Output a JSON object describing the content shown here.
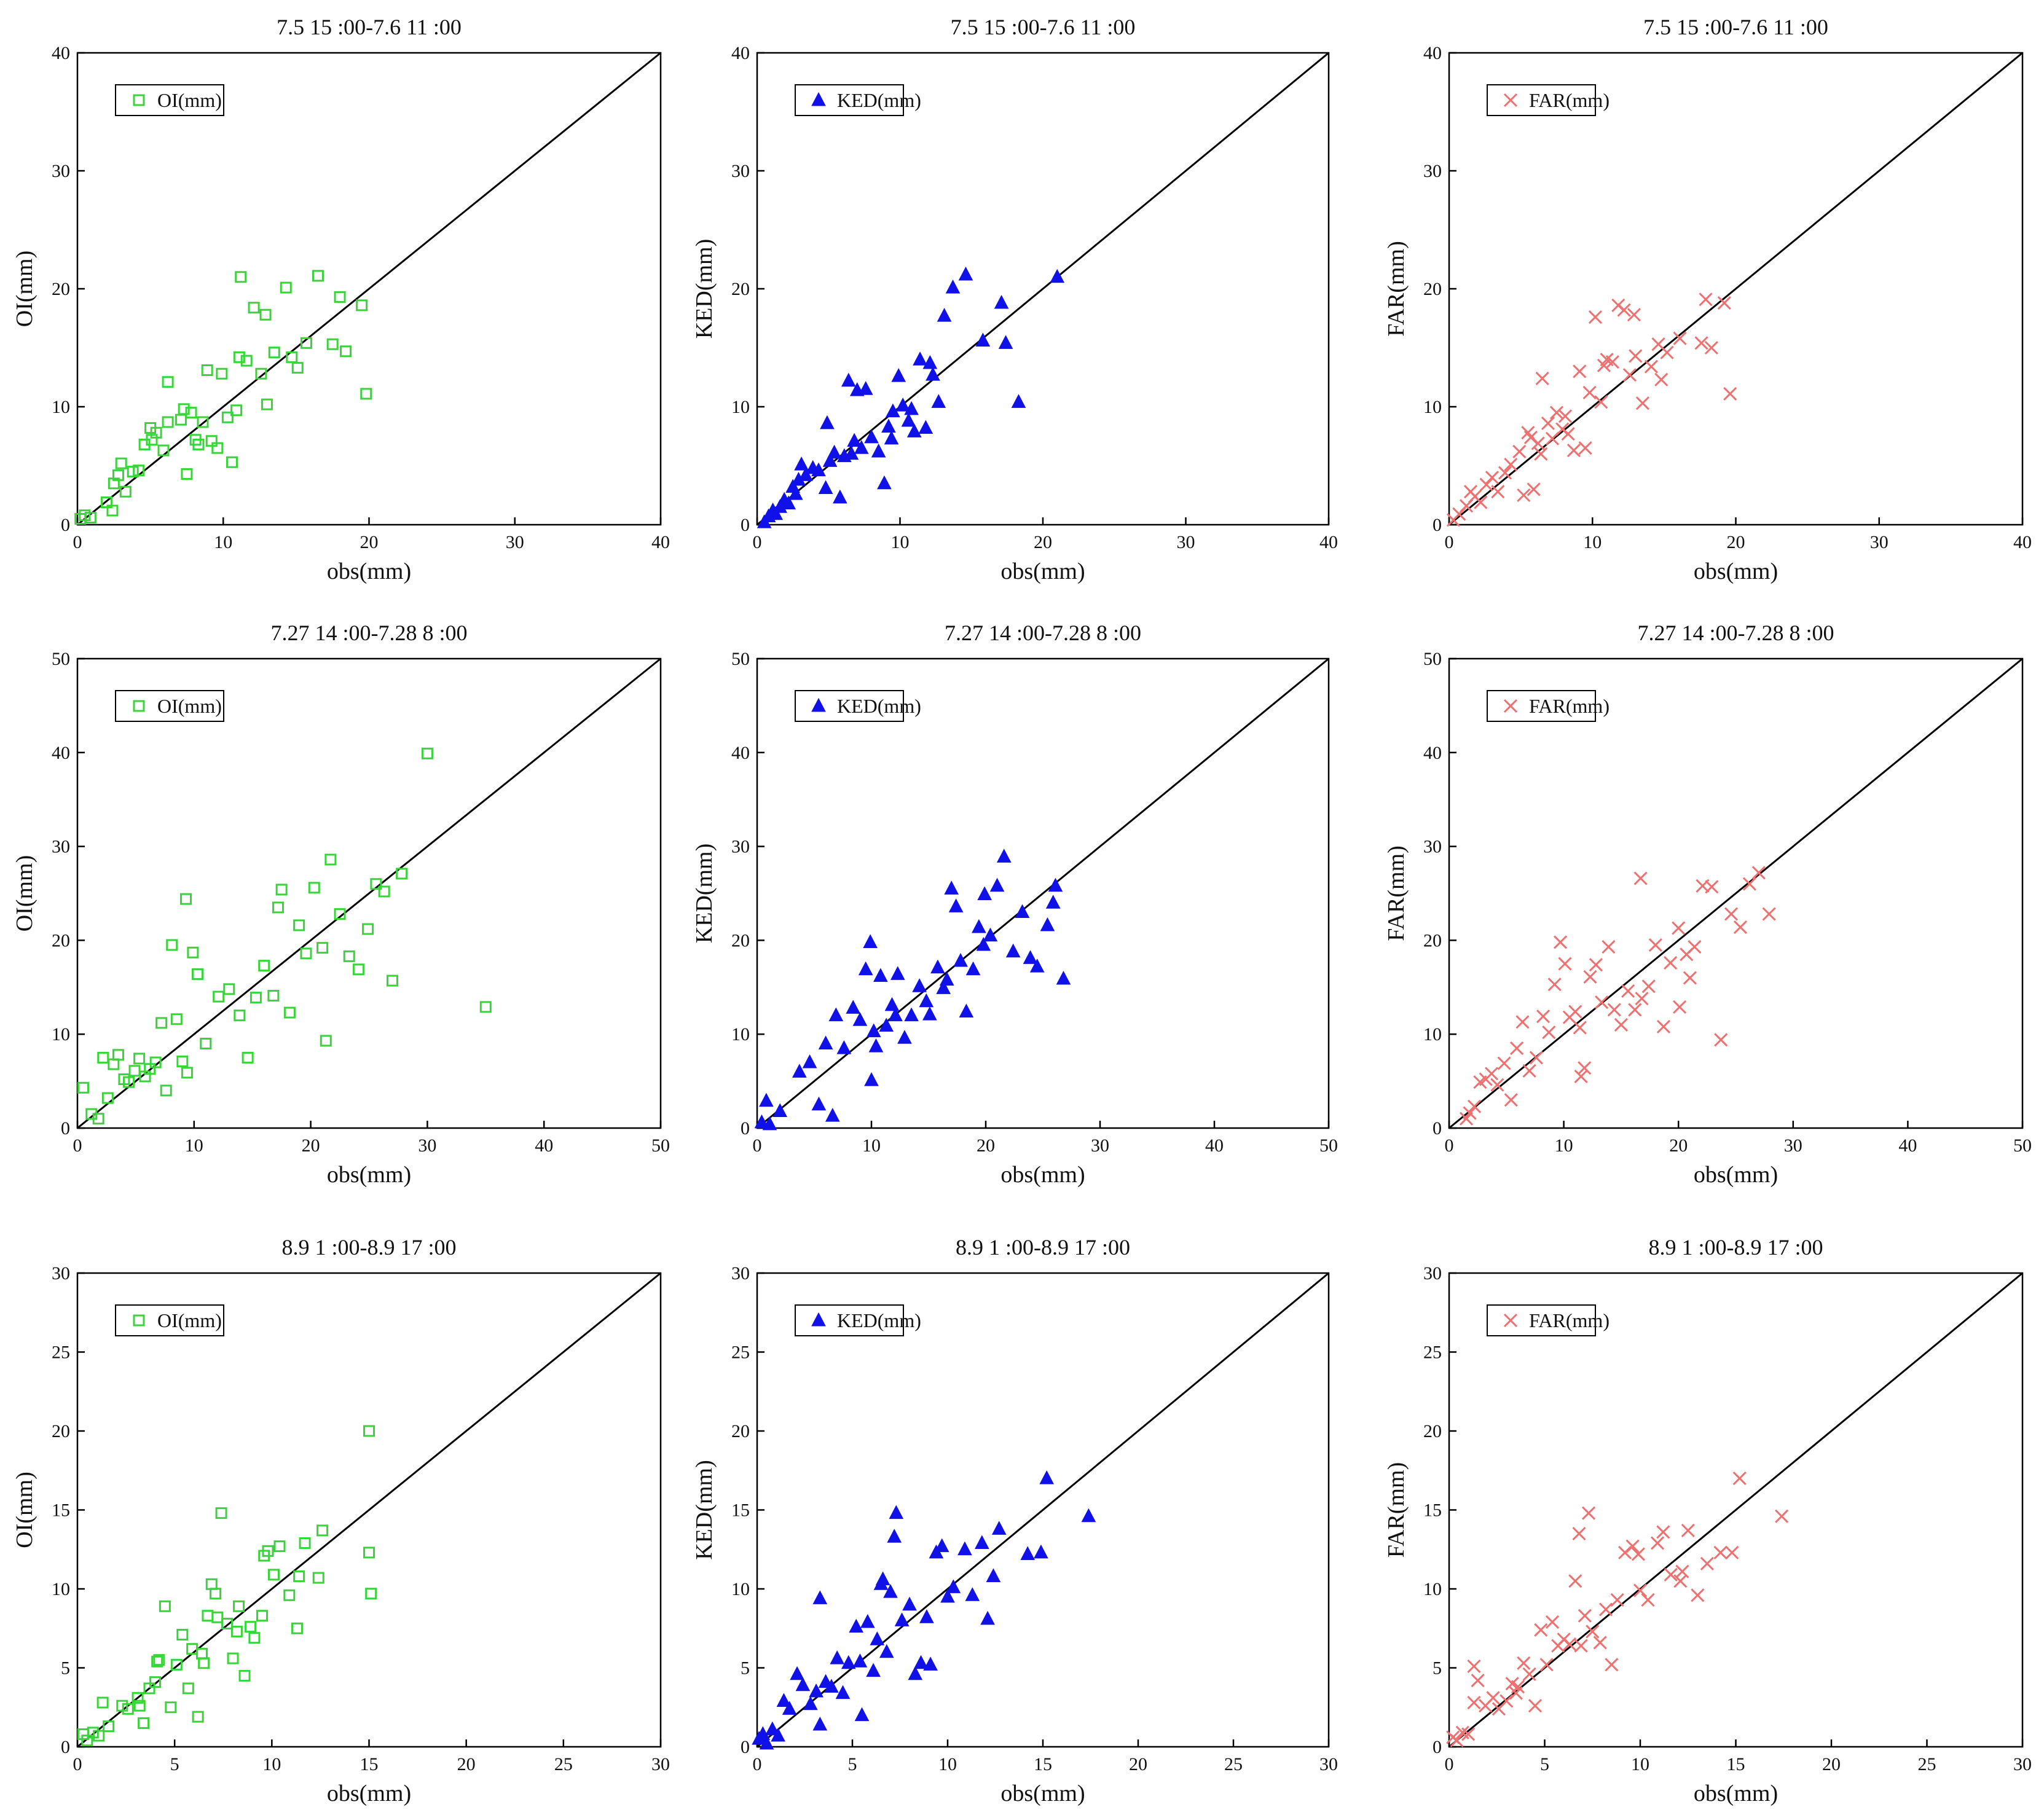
{
  "figure": {
    "rows": 3,
    "cols": 3
  },
  "chart_data": [
    {
      "type": "scatter",
      "title": "7.5 15 :00-7.6 11 :00",
      "xlabel": "obs(mm)",
      "ylabel": "OI(mm)",
      "xlim": [
        0,
        40
      ],
      "ylim": [
        0,
        40
      ],
      "ticks": [
        0,
        10,
        20,
        30,
        40
      ],
      "legend": "OI(mm)",
      "legend_position": "top-left",
      "marker": "square",
      "color": "#39d43a",
      "diagonal": "y = x",
      "x": [
        0.2,
        0.5,
        0.9,
        2.0,
        2.4,
        2.5,
        2.8,
        3.0,
        3.3,
        3.8,
        4.2,
        4.6,
        5.0,
        5.1,
        5.4,
        5.9,
        6.2,
        6.2,
        7.1,
        7.5,
        7.8,
        8.3,
        8.6,
        8.9,
        9.2,
        9.6,
        9.9,
        10.3,
        10.6,
        10.9,
        11.1,
        11.6,
        12.1,
        12.6,
        13.0,
        13.5,
        14.3,
        14.7,
        15.1,
        15.7,
        16.5,
        17.5,
        18.0,
        18.4,
        19.5,
        19.8,
        7.3,
        8.1,
        11.2,
        12.9
      ],
      "y": [
        0.5,
        0.8,
        0.6,
        1.9,
        1.2,
        3.5,
        4.2,
        5.2,
        2.8,
        4.5,
        4.6,
        6.8,
        8.2,
        7.2,
        7.8,
        6.3,
        8.7,
        12.1,
        8.9,
        4.3,
        9.5,
        6.8,
        8.7,
        13.1,
        7.1,
        6.5,
        12.8,
        9.1,
        5.3,
        9.7,
        14.2,
        13.9,
        18.4,
        12.8,
        10.2,
        14.6,
        20.1,
        14.2,
        13.3,
        15.4,
        21.1,
        15.3,
        19.3,
        14.7,
        18.6,
        11.1,
        9.8,
        7.2,
        21.0,
        17.8
      ]
    },
    {
      "type": "scatter",
      "title": "7.5 15 :00-7.6 11 :00",
      "xlabel": "obs(mm)",
      "ylabel": "KED(mm)",
      "xlim": [
        0,
        40
      ],
      "ylim": [
        0,
        40
      ],
      "ticks": [
        0,
        10,
        20,
        30,
        40
      ],
      "legend": "KED(mm)",
      "legend_position": "top-left",
      "marker": "triangle",
      "color": "#1010e8",
      "diagonal": "y = x",
      "x": [
        0.5,
        0.8,
        1.1,
        1.3,
        1.6,
        1.9,
        2.2,
        2.5,
        2.9,
        3.1,
        3.4,
        3.9,
        4.3,
        4.8,
        5.1,
        5.4,
        5.8,
        6.1,
        6.4,
        6.8,
        7.0,
        7.3,
        7.6,
        8.0,
        8.5,
        8.9,
        9.2,
        9.5,
        9.9,
        10.2,
        10.6,
        11.0,
        11.4,
        11.8,
        12.3,
        12.7,
        13.1,
        13.7,
        14.6,
        15.8,
        17.1,
        17.4,
        18.3,
        21.0,
        2.7,
        4.9,
        6.6,
        9.4,
        10.8,
        12.1
      ],
      "y": [
        0.2,
        0.7,
        1.2,
        0.9,
        1.5,
        2.1,
        1.8,
        3.2,
        3.8,
        5.1,
        4.2,
        4.8,
        4.6,
        3.1,
        5.4,
        6.1,
        2.3,
        5.8,
        12.2,
        7.1,
        11.4,
        6.5,
        11.5,
        7.4,
        6.2,
        3.5,
        8.3,
        9.6,
        12.6,
        10.1,
        8.8,
        7.9,
        14.0,
        8.2,
        12.7,
        10.4,
        17.7,
        20.1,
        21.2,
        15.6,
        18.8,
        15.4,
        10.4,
        21.0,
        2.6,
        8.6,
        6.0,
        7.3,
        9.8,
        13.7
      ]
    },
    {
      "type": "scatter",
      "title": "7.5 15 :00-7.6 11 :00",
      "xlabel": "obs(mm)",
      "ylabel": "FAR(mm)",
      "xlim": [
        0,
        40
      ],
      "ylim": [
        0,
        40
      ],
      "ticks": [
        0,
        10,
        20,
        30,
        40
      ],
      "legend": "FAR(mm)",
      "legend_position": "top-left",
      "marker": "cross",
      "color": "#f07070",
      "diagonal": "y = x",
      "x": [
        0.3,
        0.7,
        1.2,
        1.5,
        1.8,
        2.2,
        2.6,
        3.0,
        3.4,
        3.9,
        4.3,
        4.9,
        5.2,
        5.5,
        5.9,
        6.2,
        6.5,
        6.9,
        7.2,
        7.5,
        7.9,
        8.3,
        8.7,
        9.1,
        9.5,
        9.8,
        10.2,
        10.6,
        11.0,
        11.4,
        11.8,
        12.2,
        12.6,
        13.0,
        13.5,
        14.1,
        14.6,
        15.2,
        16.1,
        17.6,
        17.9,
        18.3,
        19.2,
        19.6,
        5.7,
        6.4,
        8.1,
        10.8,
        12.9,
        14.8
      ],
      "y": [
        0.4,
        0.9,
        1.6,
        2.8,
        2.4,
        1.9,
        3.4,
        4.0,
        2.8,
        4.4,
        5.1,
        6.2,
        2.5,
        7.8,
        3.0,
        6.9,
        12.4,
        8.6,
        7.3,
        9.5,
        8.1,
        7.7,
        6.3,
        13.0,
        6.5,
        11.2,
        17.6,
        10.4,
        14.0,
        13.8,
        18.6,
        18.2,
        12.7,
        14.3,
        10.3,
        13.4,
        15.3,
        14.6,
        15.8,
        15.4,
        19.1,
        15.0,
        18.8,
        11.1,
        7.4,
        6.0,
        9.2,
        13.5,
        17.8,
        12.3
      ]
    },
    {
      "type": "scatter",
      "title": "7.27 14 :00-7.28 8 :00",
      "xlabel": "obs(mm)",
      "ylabel": "OI(mm)",
      "xlim": [
        0,
        50
      ],
      "ylim": [
        0,
        50
      ],
      "ticks": [
        0,
        10,
        20,
        30,
        40,
        50
      ],
      "legend": "OI(mm)",
      "legend_position": "top-left",
      "marker": "square",
      "color": "#39d43a",
      "diagonal": "y = x",
      "x": [
        0.5,
        1.2,
        1.8,
        2.2,
        2.6,
        3.1,
        3.5,
        4.0,
        4.4,
        4.9,
        5.3,
        5.8,
        6.2,
        6.7,
        7.2,
        7.6,
        8.1,
        8.5,
        9.0,
        9.4,
        9.9,
        10.3,
        11.0,
        12.1,
        13.0,
        13.9,
        14.6,
        15.3,
        16.0,
        16.8,
        17.5,
        18.2,
        19.0,
        19.6,
        20.3,
        21.0,
        21.7,
        22.5,
        23.3,
        24.1,
        24.9,
        25.6,
        26.3,
        27.0,
        27.8,
        30.0,
        35.0,
        9.3,
        17.2,
        21.3
      ],
      "y": [
        4.3,
        1.5,
        1.0,
        7.5,
        3.2,
        6.8,
        7.8,
        5.2,
        4.9,
        6.1,
        7.4,
        5.5,
        6.3,
        7.0,
        11.2,
        4.0,
        19.5,
        11.6,
        7.1,
        5.9,
        18.7,
        16.4,
        9.0,
        14.0,
        14.8,
        12.0,
        7.5,
        13.9,
        17.3,
        14.1,
        25.4,
        12.3,
        21.6,
        18.6,
        25.6,
        19.2,
        28.6,
        22.8,
        18.3,
        16.9,
        21.2,
        26.0,
        25.2,
        15.7,
        27.1,
        39.9,
        12.9,
        24.4,
        23.5,
        9.3
      ]
    },
    {
      "type": "scatter",
      "title": "7.27 14 :00-7.28 8 :00",
      "xlabel": "obs(mm)",
      "ylabel": "KED(mm)",
      "xlim": [
        0,
        50
      ],
      "ylim": [
        0,
        50
      ],
      "ticks": [
        0,
        10,
        20,
        30,
        40,
        50
      ],
      "legend": "KED(mm)",
      "legend_position": "top-left",
      "marker": "triangle",
      "color": "#1010e8",
      "diagonal": "y = x",
      "x": [
        0.4,
        0.8,
        1.1,
        2.0,
        3.7,
        4.6,
        5.4,
        6.0,
        6.9,
        7.6,
        8.4,
        9.0,
        9.5,
        9.9,
        10.2,
        10.4,
        10.8,
        11.3,
        11.8,
        12.3,
        12.9,
        13.5,
        14.2,
        15.1,
        15.8,
        16.3,
        17.0,
        17.4,
        17.8,
        18.3,
        18.9,
        19.4,
        19.8,
        20.4,
        21.0,
        21.6,
        22.4,
        23.2,
        23.9,
        24.5,
        25.4,
        26.1,
        26.8,
        10.0,
        12.1,
        14.8,
        16.6,
        19.9,
        25.9,
        6.6
      ],
      "y": [
        0.6,
        2.9,
        0.4,
        1.8,
        6.0,
        7.0,
        2.5,
        9.0,
        12.0,
        8.5,
        12.8,
        11.5,
        16.9,
        19.8,
        10.3,
        8.7,
        16.2,
        10.9,
        13.1,
        16.4,
        9.6,
        12.0,
        15.1,
        12.1,
        17.1,
        14.9,
        25.5,
        23.6,
        17.8,
        12.4,
        16.9,
        21.4,
        19.5,
        20.5,
        25.8,
        28.9,
        18.8,
        23.0,
        18.1,
        17.2,
        21.6,
        25.8,
        15.9,
        5.1,
        12.0,
        13.5,
        15.8,
        24.9,
        24.0,
        1.3
      ]
    },
    {
      "type": "scatter",
      "title": "7.27 14 :00-7.28 8 :00",
      "xlabel": "obs(mm)",
      "ylabel": "FAR(mm)",
      "xlim": [
        0,
        50
      ],
      "ylim": [
        0,
        50
      ],
      "ticks": [
        0,
        10,
        20,
        30,
        40,
        50
      ],
      "legend": "FAR(mm)",
      "legend_position": "top-left",
      "marker": "cross",
      "color": "#f07070",
      "diagonal": "y = x",
      "x": [
        1.5,
        1.8,
        2.2,
        2.7,
        3.2,
        3.7,
        4.2,
        4.8,
        5.4,
        5.9,
        6.4,
        7.0,
        7.6,
        8.2,
        8.7,
        9.2,
        9.7,
        10.1,
        10.5,
        11.0,
        11.4,
        11.8,
        12.3,
        12.8,
        13.3,
        13.9,
        14.4,
        15.0,
        15.6,
        16.2,
        16.8,
        17.4,
        18.0,
        18.7,
        19.3,
        20.0,
        20.7,
        21.4,
        22.1,
        22.9,
        23.7,
        24.6,
        25.4,
        26.2,
        27.0,
        27.9,
        16.7,
        20.1,
        21.0,
        11.5
      ],
      "y": [
        1.0,
        1.6,
        2.3,
        4.9,
        5.2,
        5.8,
        4.6,
        6.9,
        3.0,
        8.5,
        11.3,
        6.1,
        7.5,
        11.9,
        10.2,
        15.3,
        19.8,
        17.5,
        11.8,
        12.4,
        10.7,
        6.4,
        16.1,
        17.4,
        13.4,
        19.3,
        12.6,
        11.0,
        14.6,
        12.6,
        13.8,
        15.1,
        19.5,
        10.8,
        17.6,
        21.3,
        18.5,
        19.3,
        25.8,
        25.7,
        9.4,
        22.8,
        21.4,
        26.0,
        27.2,
        22.8,
        26.6,
        12.9,
        16.0,
        5.5
      ]
    },
    {
      "type": "scatter",
      "title": "8.9 1 :00-8.9 17 :00",
      "xlabel": "obs(mm)",
      "ylabel": "OI(mm)",
      "xlim": [
        0,
        30
      ],
      "ylim": [
        0,
        30
      ],
      "ticks": [
        0,
        5,
        10,
        15,
        20,
        25,
        30
      ],
      "legend": "OI(mm)",
      "legend_position": "top-left",
      "marker": "square",
      "color": "#39d43a",
      "diagonal": "y = x",
      "x": [
        0.3,
        0.5,
        0.8,
        1.1,
        1.3,
        1.6,
        2.3,
        2.6,
        3.1,
        3.4,
        3.7,
        4.0,
        4.2,
        4.5,
        4.8,
        5.1,
        5.4,
        5.7,
        5.9,
        6.2,
        6.5,
        6.7,
        6.9,
        7.1,
        7.4,
        7.7,
        8.0,
        8.3,
        8.6,
        8.9,
        9.1,
        9.5,
        9.8,
        10.1,
        10.4,
        10.9,
        11.3,
        11.7,
        12.4,
        12.6,
        15.0,
        15.1,
        15.0,
        7.2,
        8.2,
        9.6,
        6.4,
        4.1,
        3.2,
        11.4
      ],
      "y": [
        0.8,
        0.4,
        0.9,
        0.7,
        2.8,
        1.3,
        2.6,
        2.4,
        3.1,
        1.5,
        3.7,
        4.1,
        5.5,
        8.9,
        2.5,
        5.2,
        7.1,
        3.7,
        6.2,
        1.9,
        5.3,
        8.3,
        10.3,
        9.7,
        14.8,
        7.8,
        5.6,
        8.9,
        4.5,
        7.6,
        6.9,
        8.3,
        12.4,
        10.9,
        12.7,
        9.6,
        7.5,
        12.9,
        10.7,
        13.7,
        12.3,
        9.7,
        20.0,
        8.2,
        7.3,
        12.1,
        5.9,
        5.4,
        2.6,
        10.8
      ]
    },
    {
      "type": "scatter",
      "title": "8.9 1 :00-8.9 17 :00",
      "xlabel": "obs(mm)",
      "ylabel": "KED(mm)",
      "xlim": [
        0,
        30
      ],
      "ylim": [
        0,
        30
      ],
      "ticks": [
        0,
        5,
        10,
        15,
        20,
        25,
        30
      ],
      "legend": "KED(mm)",
      "legend_position": "top-left",
      "marker": "triangle",
      "color": "#1010e8",
      "diagonal": "y = x",
      "x": [
        0.1,
        0.3,
        0.5,
        0.8,
        1.1,
        1.4,
        1.7,
        2.1,
        2.4,
        2.8,
        3.1,
        3.3,
        3.6,
        3.9,
        4.2,
        4.5,
        4.8,
        5.2,
        5.5,
        5.8,
        6.1,
        6.3,
        6.5,
        6.8,
        7.0,
        7.3,
        7.6,
        8.0,
        8.3,
        8.6,
        8.9,
        9.1,
        9.4,
        9.7,
        10.0,
        10.3,
        10.9,
        11.3,
        11.8,
        12.1,
        12.4,
        12.7,
        14.2,
        14.9,
        15.2,
        17.4,
        6.6,
        3.3,
        5.4,
        7.2
      ],
      "y": [
        0.5,
        0.8,
        0.2,
        1.1,
        0.7,
        2.9,
        2.4,
        4.6,
        3.9,
        2.7,
        3.5,
        9.4,
        4.1,
        3.8,
        5.6,
        3.4,
        5.3,
        7.6,
        2.0,
        7.9,
        4.8,
        6.8,
        10.3,
        6.0,
        9.8,
        14.8,
        8.0,
        9.0,
        4.6,
        5.3,
        8.2,
        5.2,
        12.3,
        12.7,
        9.5,
        10.1,
        12.5,
        9.6,
        12.9,
        8.1,
        10.8,
        13.8,
        12.2,
        12.3,
        17.0,
        14.6,
        10.6,
        1.4,
        5.4,
        13.3
      ]
    },
    {
      "type": "scatter",
      "title": "8.9 1 :00-8.9 17 :00",
      "xlabel": "obs(mm)",
      "ylabel": "FAR(mm)",
      "xlim": [
        0,
        30
      ],
      "ylim": [
        0,
        30
      ],
      "ticks": [
        0,
        5,
        10,
        15,
        20,
        25,
        30
      ],
      "legend": "FAR(mm)",
      "legend_position": "top-left",
      "marker": "cross",
      "color": "#f07070",
      "diagonal": "y = x",
      "x": [
        0.2,
        0.4,
        0.7,
        1.0,
        1.3,
        1.5,
        1.9,
        2.3,
        2.6,
        3.0,
        3.3,
        3.6,
        3.9,
        4.2,
        4.5,
        4.8,
        5.1,
        5.4,
        5.7,
        6.0,
        6.3,
        6.6,
        6.8,
        7.1,
        7.3,
        7.5,
        7.9,
        8.2,
        8.5,
        8.8,
        9.2,
        9.6,
        10.0,
        10.4,
        10.9,
        11.2,
        11.6,
        12.1,
        12.5,
        13.0,
        13.5,
        14.2,
        14.8,
        15.2,
        17.4,
        1.3,
        3.5,
        6.9,
        9.9,
        12.2
      ],
      "y": [
        0.6,
        0.4,
        0.9,
        0.8,
        2.8,
        4.2,
        2.6,
        3.1,
        2.4,
        2.9,
        4.0,
        3.8,
        5.3,
        4.6,
        2.6,
        7.4,
        5.2,
        7.9,
        6.4,
        6.8,
        6.5,
        10.5,
        13.5,
        8.3,
        14.8,
        7.3,
        6.6,
        8.7,
        5.2,
        9.3,
        12.3,
        12.7,
        9.9,
        9.3,
        12.9,
        13.6,
        10.9,
        10.5,
        13.7,
        9.6,
        11.6,
        12.3,
        12.3,
        17.0,
        14.6,
        5.1,
        3.4,
        6.4,
        12.2,
        11.1
      ]
    }
  ]
}
